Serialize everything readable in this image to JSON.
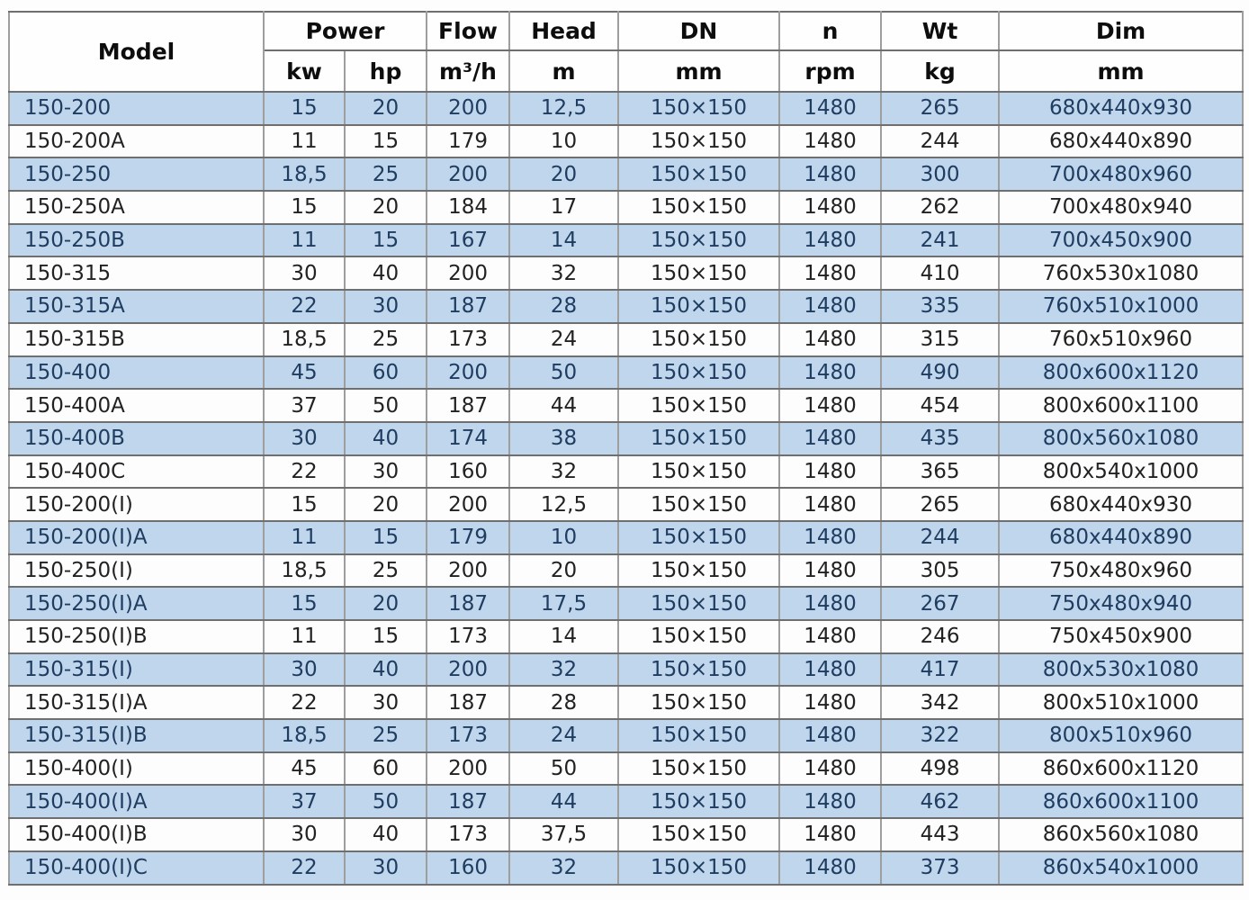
{
  "table_header": {
    "model": "Model",
    "power": "Power",
    "power_kw": "kw",
    "power_hp": "hp",
    "flow": "Flow",
    "flow_unit": "m³/h",
    "head": "Head",
    "head_unit": "m",
    "dn": "DN",
    "dn_unit": "mm",
    "n": "n",
    "n_unit": "rpm",
    "wt": "Wt",
    "wt_unit": "kg",
    "dim": "Dim",
    "dim_unit": "mm"
  },
  "chart_data": {
    "type": "table",
    "columns": [
      "Model",
      "Power kw",
      "Power hp",
      "Flow m³/h",
      "Head m",
      "DN mm",
      "n rpm",
      "Wt kg",
      "Dim mm"
    ],
    "rows": [
      {
        "shaded": true,
        "cells": [
          "150-200",
          "15",
          "20",
          "200",
          "12,5",
          "150×150",
          "1480",
          "265",
          "680x440x930"
        ]
      },
      {
        "shaded": false,
        "cells": [
          "150-200A",
          "11",
          "15",
          "179",
          "10",
          "150×150",
          "1480",
          "244",
          "680x440x890"
        ]
      },
      {
        "shaded": true,
        "cells": [
          "150-250",
          "18,5",
          "25",
          "200",
          "20",
          "150×150",
          "1480",
          "300",
          "700x480x960"
        ]
      },
      {
        "shaded": false,
        "cells": [
          "150-250A",
          "15",
          "20",
          "184",
          "17",
          "150×150",
          "1480",
          "262",
          "700x480x940"
        ]
      },
      {
        "shaded": true,
        "cells": [
          "150-250B",
          "11",
          "15",
          "167",
          "14",
          "150×150",
          "1480",
          "241",
          "700x450x900"
        ]
      },
      {
        "shaded": false,
        "cells": [
          "150-315",
          "30",
          "40",
          "200",
          "32",
          "150×150",
          "1480",
          "410",
          "760x530x1080"
        ]
      },
      {
        "shaded": true,
        "cells": [
          "150-315A",
          "22",
          "30",
          "187",
          "28",
          "150×150",
          "1480",
          "335",
          "760x510x1000"
        ]
      },
      {
        "shaded": false,
        "cells": [
          "150-315B",
          "18,5",
          "25",
          "173",
          "24",
          "150×150",
          "1480",
          "315",
          "760x510x960"
        ]
      },
      {
        "shaded": true,
        "cells": [
          "150-400",
          "45",
          "60",
          "200",
          "50",
          "150×150",
          "1480",
          "490",
          "800x600x1120"
        ]
      },
      {
        "shaded": false,
        "cells": [
          "150-400A",
          "37",
          "50",
          "187",
          "44",
          "150×150",
          "1480",
          "454",
          "800x600x1100"
        ]
      },
      {
        "shaded": true,
        "cells": [
          "150-400B",
          "30",
          "40",
          "174",
          "38",
          "150×150",
          "1480",
          "435",
          "800x560x1080"
        ]
      },
      {
        "shaded": false,
        "cells": [
          "150-400C",
          "22",
          "30",
          "160",
          "32",
          "150×150",
          "1480",
          "365",
          "800x540x1000"
        ]
      },
      {
        "shaded": false,
        "cells": [
          "150-200(I)",
          "15",
          "20",
          "200",
          "12,5",
          "150×150",
          "1480",
          "265",
          "680x440x930"
        ]
      },
      {
        "shaded": true,
        "cells": [
          "150-200(I)A",
          "11",
          "15",
          "179",
          "10",
          "150×150",
          "1480",
          "244",
          "680x440x890"
        ]
      },
      {
        "shaded": false,
        "cells": [
          "150-250(I)",
          "18,5",
          "25",
          "200",
          "20",
          "150×150",
          "1480",
          "305",
          "750x480x960"
        ]
      },
      {
        "shaded": true,
        "cells": [
          "150-250(I)A",
          "15",
          "20",
          "187",
          "17,5",
          "150×150",
          "1480",
          "267",
          "750x480x940"
        ]
      },
      {
        "shaded": false,
        "cells": [
          "150-250(I)B",
          "11",
          "15",
          "173",
          "14",
          "150×150",
          "1480",
          "246",
          "750x450x900"
        ]
      },
      {
        "shaded": true,
        "cells": [
          "150-315(I)",
          "30",
          "40",
          "200",
          "32",
          "150×150",
          "1480",
          "417",
          "800x530x1080"
        ]
      },
      {
        "shaded": false,
        "cells": [
          "150-315(I)A",
          "22",
          "30",
          "187",
          "28",
          "150×150",
          "1480",
          "342",
          "800x510x1000"
        ]
      },
      {
        "shaded": true,
        "cells": [
          "150-315(I)B",
          "18,5",
          "25",
          "173",
          "24",
          "150×150",
          "1480",
          "322",
          "800x510x960"
        ]
      },
      {
        "shaded": false,
        "cells": [
          "150-400(I)",
          "45",
          "60",
          "200",
          "50",
          "150×150",
          "1480",
          "498",
          "860x600x1120"
        ]
      },
      {
        "shaded": true,
        "cells": [
          "150-400(I)A",
          "37",
          "50",
          "187",
          "44",
          "150×150",
          "1480",
          "462",
          "860x600x1100"
        ]
      },
      {
        "shaded": false,
        "cells": [
          "150-400(I)B",
          "30",
          "40",
          "173",
          "37,5",
          "150×150",
          "1480",
          "443",
          "860x560x1080"
        ]
      },
      {
        "shaded": true,
        "cells": [
          "150-400(I)C",
          "22",
          "30",
          "160",
          "32",
          "150×150",
          "1480",
          "373",
          "860x540x1000"
        ]
      }
    ]
  },
  "colors": {
    "shaded_row_bg": "#bfd6ec",
    "shaded_row_text": "#1f3c61",
    "plain_row_text": "#222222",
    "header_text": "#0d0d0d",
    "grid_horizontal": "#6f6f6f",
    "grid_vertical": "#9e9e9e",
    "outer_border": "#5f5f5f"
  }
}
